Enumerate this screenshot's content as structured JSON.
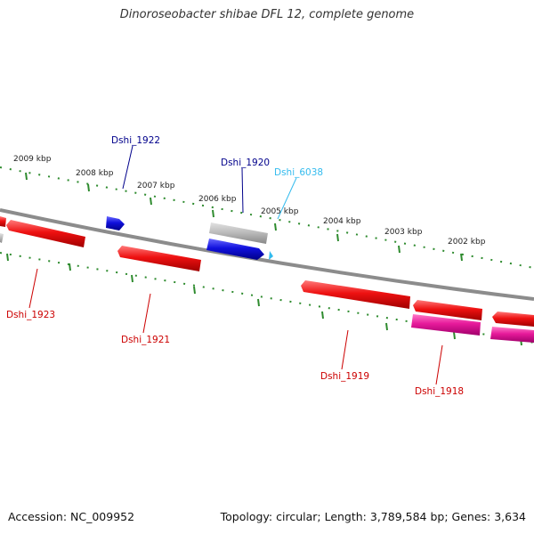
{
  "title": "Dinoroseobacter shibae DFL 12, complete genome",
  "footer": {
    "accession": "Accession: NC_009952",
    "summary": "Topology: circular; Length: 3,789,584 bp; Genes: 3,634"
  },
  "ruler_labels": [
    "2009 kbp",
    "2008 kbp",
    "2007 kbp",
    "2006 kbp",
    "2005 kbp",
    "2004 kbp",
    "2003 kbp",
    "2002 kbp"
  ],
  "gene_labels": {
    "g1922": "Dshi_1922",
    "g1920": "Dshi_1920",
    "g6038": "Dshi_6038",
    "g1923": "Dshi_1923",
    "g1921": "Dshi_1921",
    "g1919": "Dshi_1919",
    "g1918": "Dshi_1918"
  },
  "colors": {
    "ruler": "#2e8b2e",
    "backbone": "#8c8c8c",
    "gene_red": "#ee1111",
    "gene_blue": "#1111dd",
    "gene_grey": "#b8b8b8",
    "gene_pink": "#e6199a",
    "label_red": "#cc0000",
    "label_blue": "#00008b",
    "label_cyan": "#33bbee"
  }
}
